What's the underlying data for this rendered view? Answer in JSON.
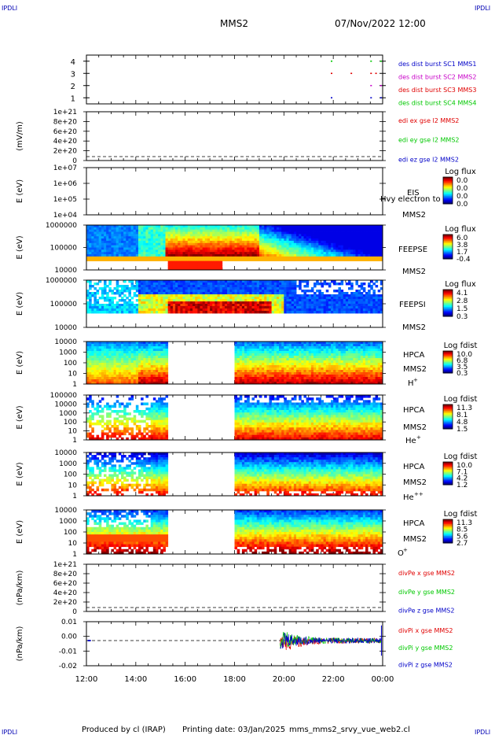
{
  "header": {
    "corner_label": "IPDLI",
    "spacecraft": "MMS2",
    "datetime": "07/Nov/2022 12:00"
  },
  "footer": {
    "producer": "Produced by cl (IRAP)",
    "printing": "Printing date: 03/Jan/2025",
    "script": "mms_mms2_srvy_vue_web2.cl"
  },
  "time_axis": [
    "12:00",
    "14:00",
    "16:00",
    "18:00",
    "20:00",
    "22:00",
    "00:00"
  ],
  "chart_data": [
    {
      "type": "scatter",
      "panel": "burst_availability",
      "ylabel": "",
      "ylim": [
        0.5,
        4.5
      ],
      "y_ticks": [
        "1",
        "2",
        "3",
        "4"
      ],
      "legend": [
        {
          "name": "des dist burst SC1 MMS1",
          "color": "#0000c8"
        },
        {
          "name": "des dist burst SC2 MMS2",
          "color": "#c800c8"
        },
        {
          "name": "des dist burst SC3 MMS3",
          "color": "#e00000"
        },
        {
          "name": "des dist burst SC4 MMS4",
          "color": "#00c800"
        }
      ],
      "marks": [
        {
          "sc": 1,
          "times": [
            21.9,
            23.5,
            23.9
          ]
        },
        {
          "sc": 2,
          "times": [
            23.5,
            23.9
          ]
        },
        {
          "sc": 3,
          "times": [
            21.9,
            22.7,
            23.5,
            23.7
          ]
        },
        {
          "sc": 4,
          "times": [
            21.9,
            23.5,
            23.9
          ]
        }
      ]
    },
    {
      "type": "line",
      "panel": "edi_e_gse",
      "ylabel": "(mV/m)",
      "ylim": [
        0,
        1e+21
      ],
      "y_ticks": [
        "0",
        "2e+20",
        "4e+20",
        "6e+20",
        "8e+20",
        "1e+21"
      ],
      "series": [
        {
          "name": "edi ex gse l2 MMS2",
          "color": "#e00000"
        },
        {
          "name": "edi ey gse l2 MMS2",
          "color": "#00c800"
        },
        {
          "name": "edi ez gse l2 MMS2",
          "color": "#0000c8"
        }
      ]
    },
    {
      "type": "heatmap",
      "panel": "eis",
      "ylabel": "E (eV)",
      "y_ticks": [
        "1e+04",
        "1e+05",
        "1e+06",
        "1e+07"
      ],
      "labels": [
        "EIS",
        "MMS2"
      ],
      "overlay_text": "Hvy electron to",
      "colorbar": {
        "title": "Log flux",
        "values": [
          "0.0",
          "0.0",
          "0.0",
          "0.0"
        ]
      }
    },
    {
      "type": "heatmap",
      "panel": "feeps_e",
      "ylabel": "E (eV)",
      "y_ticks": [
        "10000",
        "100000",
        "1000000"
      ],
      "labels": [
        "FEEPSE",
        "MMS2"
      ],
      "colorbar": {
        "title": "Log flux",
        "values": [
          "6.0",
          "3.8",
          "1.7",
          "-0.4"
        ]
      }
    },
    {
      "type": "heatmap",
      "panel": "feeps_i",
      "ylabel": "E (eV)",
      "y_ticks": [
        "10000",
        "100000",
        "1000000"
      ],
      "labels": [
        "FEEPSI",
        "MMS2"
      ],
      "colorbar": {
        "title": "Log flux",
        "values": [
          "4.1",
          "2.8",
          "1.5",
          "0.3"
        ]
      }
    },
    {
      "type": "heatmap",
      "panel": "hpca_h",
      "ylabel": "E (eV)",
      "y_ticks": [
        "1",
        "10",
        "100",
        "1000",
        "10000"
      ],
      "labels": [
        "HPCA",
        "MMS2"
      ],
      "species": "H",
      "species_sup": "+",
      "colorbar": {
        "title": "Log fdist",
        "values": [
          "10.0",
          "6.8",
          "3.5",
          "0.3"
        ]
      }
    },
    {
      "type": "heatmap",
      "panel": "hpca_he",
      "ylabel": "E (eV)",
      "y_ticks": [
        "1",
        "10",
        "100",
        "1000",
        "10000",
        "100000"
      ],
      "labels": [
        "HPCA",
        "MMS2"
      ],
      "species": "He",
      "species_sup": "+",
      "colorbar": {
        "title": "Log fdist",
        "values": [
          "11.3",
          "8.1",
          "4.8",
          "1.5"
        ]
      }
    },
    {
      "type": "heatmap",
      "panel": "hpca_hepp",
      "ylabel": "E (eV)",
      "y_ticks": [
        "1",
        "10",
        "100",
        "1000",
        "10000"
      ],
      "labels": [
        "HPCA",
        "MMS2"
      ],
      "species": "He",
      "species_sup": "++",
      "colorbar": {
        "title": "Log fdist",
        "values": [
          "10.0",
          "7.1",
          "4.2",
          "1.2"
        ]
      }
    },
    {
      "type": "heatmap",
      "panel": "hpca_o",
      "ylabel": "E (eV)",
      "y_ticks": [
        "1",
        "10",
        "100",
        "1000",
        "10000"
      ],
      "labels": [
        "HPCA",
        "MMS2"
      ],
      "species": "O",
      "species_sup": "+",
      "colorbar": {
        "title": "Log fdist",
        "values": [
          "11.3",
          "8.5",
          "5.6",
          "2.7"
        ]
      }
    },
    {
      "type": "line",
      "panel": "divpe",
      "ylabel": "(nPa/km)",
      "ylim": [
        0,
        1e+21
      ],
      "y_ticks": [
        "0",
        "2e+20",
        "4e+20",
        "6e+20",
        "8e+20",
        "1e+21"
      ],
      "series": [
        {
          "name": "divPe x gse MMS2",
          "color": "#e00000"
        },
        {
          "name": "divPe y gse MMS2",
          "color": "#00c800"
        },
        {
          "name": "divPe z gse MMS2",
          "color": "#0000c8"
        }
      ]
    },
    {
      "type": "line",
      "panel": "divpi",
      "ylabel": "(nPa/km)",
      "ylim": [
        -0.02,
        0.015
      ],
      "y_ticks": [
        "-0.02",
        "-0.01",
        "0.00",
        "0.01"
      ],
      "series": [
        {
          "name": "divPi x gse MMS2",
          "color": "#e00000"
        },
        {
          "name": "divPi y gse MMS2",
          "color": "#00c800"
        },
        {
          "name": "divPi z gse MMS2",
          "color": "#0000c8"
        }
      ]
    }
  ]
}
